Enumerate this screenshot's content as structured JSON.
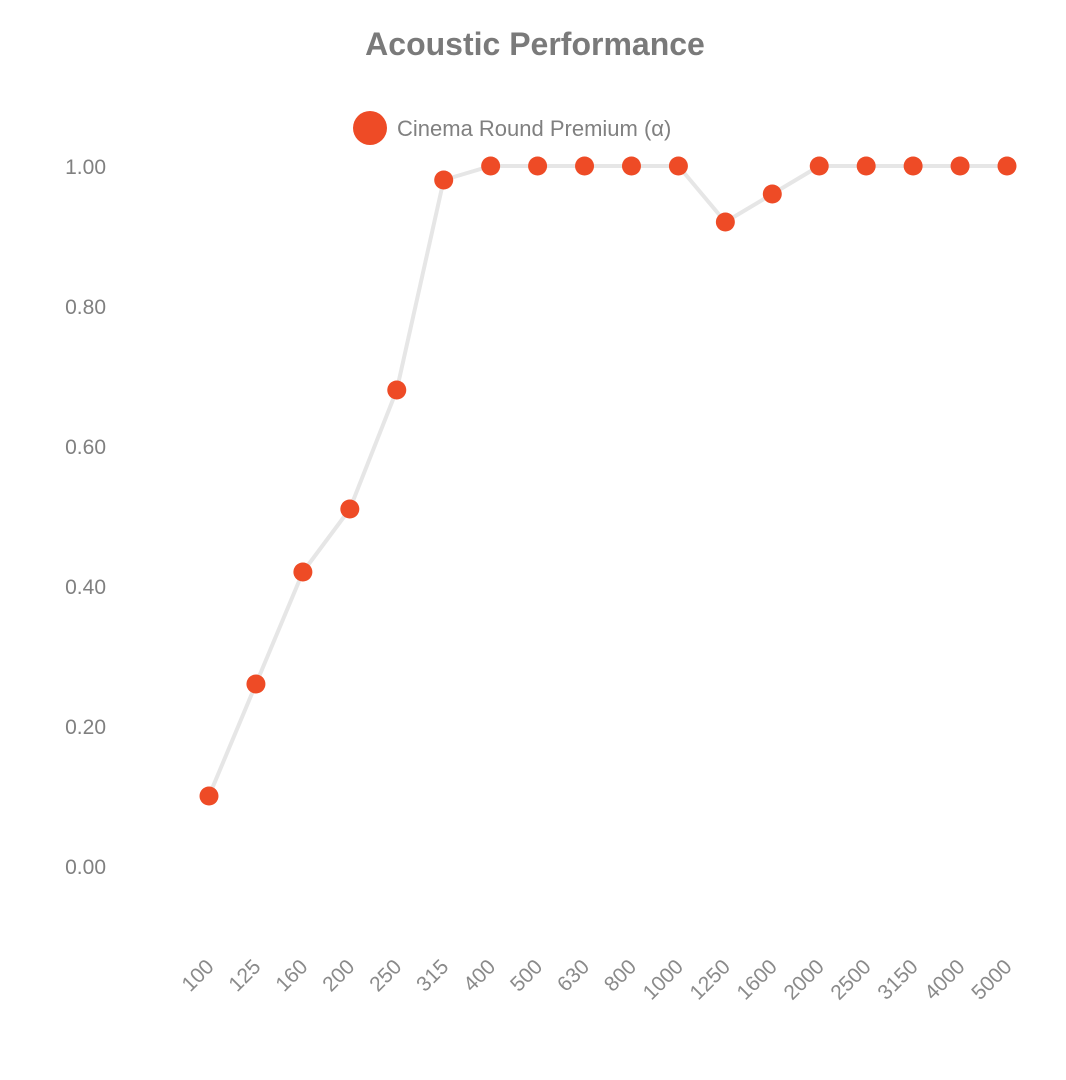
{
  "chart_data": {
    "type": "line",
    "title": "Acoustic Performance",
    "xlabel": "",
    "ylabel": "",
    "categories": [
      "100",
      "125",
      "160",
      "200",
      "250",
      "315",
      "400",
      "500",
      "630",
      "800",
      "1000",
      "1250",
      "1600",
      "2000",
      "2500",
      "3150",
      "4000",
      "5000"
    ],
    "series": [
      {
        "name": "Cinema Round Premium (α)",
        "values": [
          0.1,
          0.26,
          0.42,
          0.51,
          0.68,
          0.98,
          1.0,
          1.0,
          1.0,
          1.0,
          1.0,
          0.92,
          0.96,
          1.0,
          1.0,
          1.0,
          1.0,
          1.0
        ]
      }
    ],
    "yticks": [
      "0.00",
      "0.20",
      "0.40",
      "0.60",
      "0.80",
      "1.00"
    ],
    "ylim": [
      0,
      1
    ],
    "grid": false,
    "legend_position": "top",
    "colors": {
      "marker": "#ee4b26",
      "line": "#e6e6e6",
      "text": "#808080"
    }
  }
}
